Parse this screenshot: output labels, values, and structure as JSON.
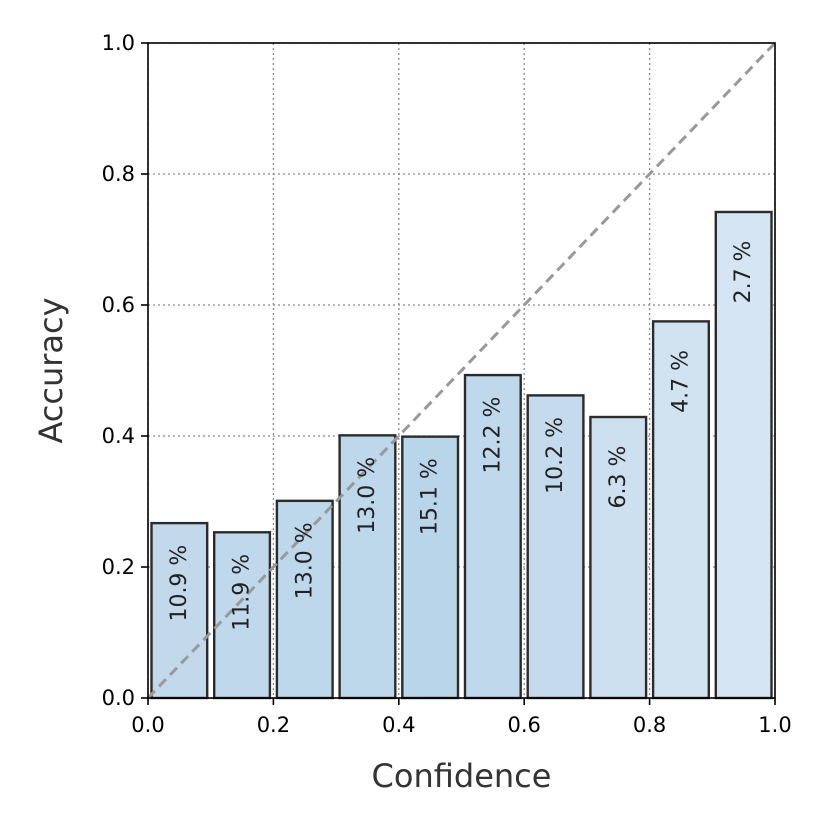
{
  "chart_data": {
    "type": "bar",
    "xlabel": "Confidence",
    "ylabel": "Accuracy",
    "xlim": [
      0.0,
      1.0
    ],
    "ylim": [
      0.0,
      1.0
    ],
    "x_ticks": [
      "0.0",
      "0.2",
      "0.4",
      "0.6",
      "0.8",
      "1.0"
    ],
    "y_ticks": [
      "0.0",
      "0.2",
      "0.4",
      "0.6",
      "0.8",
      "1.0"
    ],
    "grid": true,
    "reference_line": "diagonal y = x (dashed gray)",
    "bins": [
      {
        "x0": 0.0,
        "x1": 0.1,
        "accuracy": 0.267,
        "label": "10.9 %",
        "color": "#c2d9ec"
      },
      {
        "x0": 0.1,
        "x1": 0.2,
        "accuracy": 0.253,
        "label": "11.9 %",
        "color": "#c0d8ec"
      },
      {
        "x0": 0.2,
        "x1": 0.3,
        "accuracy": 0.301,
        "label": "13.0 %",
        "color": "#bdd7eb"
      },
      {
        "x0": 0.3,
        "x1": 0.4,
        "accuracy": 0.401,
        "label": "13.0 %",
        "color": "#bdd7eb"
      },
      {
        "x0": 0.4,
        "x1": 0.5,
        "accuracy": 0.399,
        "label": "15.1 %",
        "color": "#b8d5ea"
      },
      {
        "x0": 0.5,
        "x1": 0.6,
        "accuracy": 0.493,
        "label": "12.2 %",
        "color": "#bfd8ec"
      },
      {
        "x0": 0.6,
        "x1": 0.7,
        "accuracy": 0.462,
        "label": "10.2 %",
        "color": "#c4dbed"
      },
      {
        "x0": 0.7,
        "x1": 0.8,
        "accuracy": 0.429,
        "label": "6.3 %",
        "color": "#cde0f0"
      },
      {
        "x0": 0.8,
        "x1": 0.9,
        "accuracy": 0.575,
        "label": "4.7 %",
        "color": "#d1e2f1"
      },
      {
        "x0": 0.9,
        "x1": 1.0,
        "accuracy": 0.742,
        "label": "2.7 %",
        "color": "#d5e5f3"
      }
    ]
  }
}
